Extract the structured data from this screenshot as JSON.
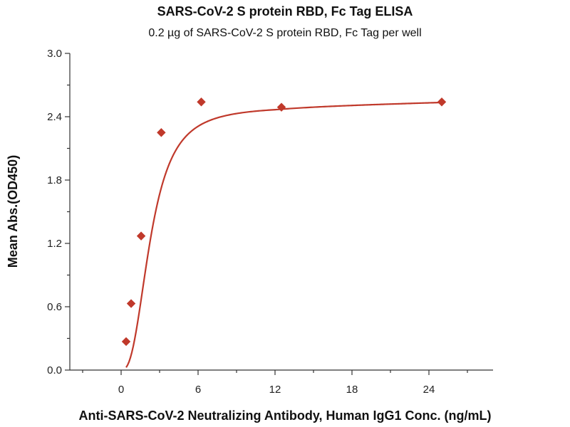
{
  "chart_data": {
    "type": "scatter",
    "title": "SARS-CoV-2 S protein RBD, Fc Tag ELISA",
    "subtitle": "0.2 µg of SARS-CoV-2 S protein RBD, Fc Tag per well",
    "xlabel": "Anti-SARS-CoV-2 Neutralizing Antibody, Human IgG1 Conc. (ng/mL)",
    "ylabel": "Mean Abs.(OD450)",
    "xlim": [
      -4,
      29
    ],
    "ylim": [
      0,
      3.0
    ],
    "x_ticks": [
      0,
      6,
      12,
      18,
      24
    ],
    "x_tick_labels": [
      "0",
      "6",
      "12",
      "18",
      "24"
    ],
    "y_ticks": [
      0,
      0.6,
      1.2,
      1.8,
      2.4,
      3.0
    ],
    "y_tick_labels": [
      "0.0",
      "0.6",
      "1.2",
      "1.8",
      "2.4",
      "3.0"
    ],
    "series": [
      {
        "x": [
          0.39,
          0.78,
          1.56,
          3.13,
          6.25,
          12.5,
          25
        ],
        "y": [
          0.27,
          0.63,
          1.27,
          2.25,
          2.54,
          2.49,
          2.54
        ],
        "color": "#c0392b",
        "marker": "diamond",
        "fit": "4PL"
      }
    ],
    "grid": false,
    "legend": "none"
  }
}
